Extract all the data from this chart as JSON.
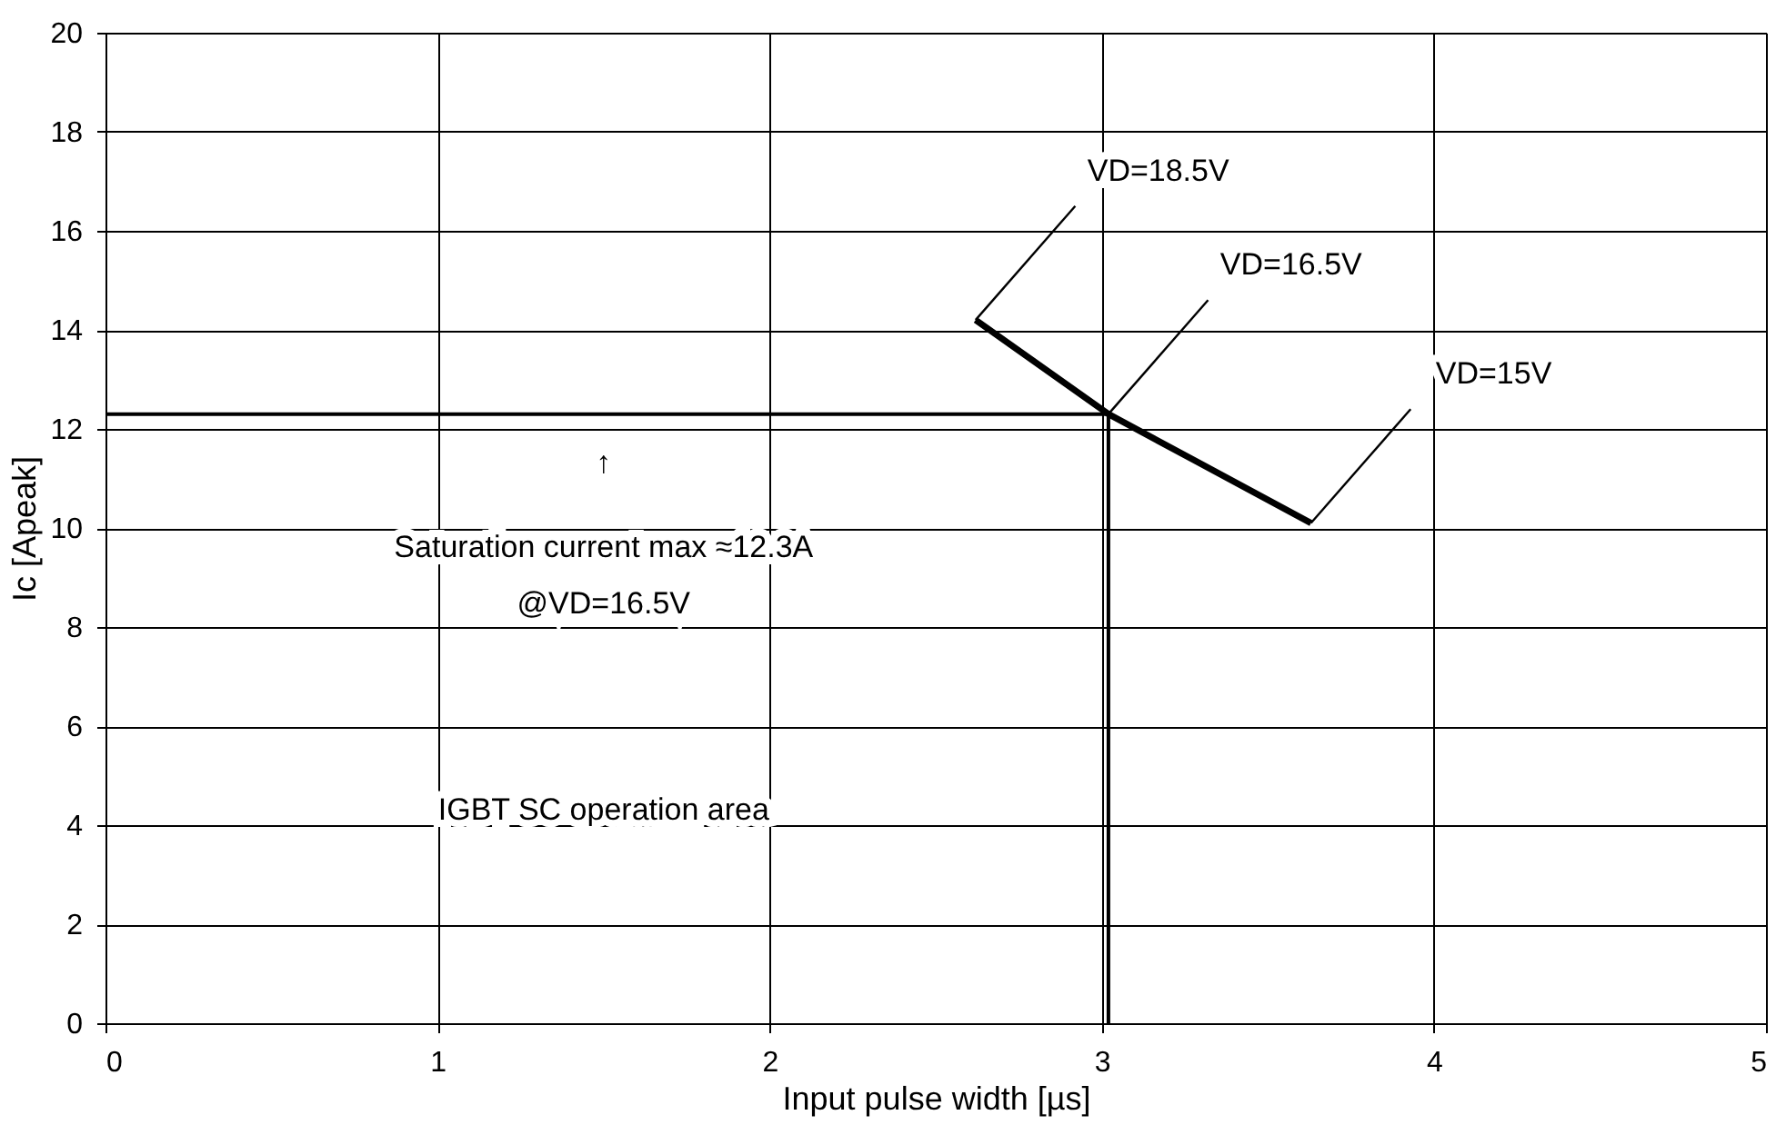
{
  "chart_data": {
    "type": "line",
    "xlabel": "Input pulse width [µs]",
    "ylabel": "Ic [Apeak]",
    "series": [
      {
        "color": "#000000",
        "x": [
          2.62,
          3.02,
          3.63
        ],
        "values": [
          14.2,
          12.3,
          10.1
        ]
      },
      {
        "color": "#000000",
        "x": [
          0,
          3.02,
          3.02
        ],
        "values": [
          12.3,
          12.3,
          0
        ]
      }
    ],
    "xlim": [
      0,
      5
    ],
    "xticks": [
      0,
      1,
      2,
      3,
      4,
      5
    ],
    "ylim": [
      0,
      20
    ],
    "yticks": [
      0,
      2,
      4,
      6,
      8,
      10,
      12,
      14,
      16,
      18,
      20
    ],
    "grid": true,
    "marker": "none",
    "line_style": "solid",
    "annotations": [
      {
        "text": "VD=18.5V",
        "x": 2.62,
        "y": 14.2
      },
      {
        "text": "VD=16.5V",
        "x": 3.02,
        "y": 12.3
      },
      {
        "text": "VD=15V",
        "x": 3.63,
        "y": 10.1
      },
      "↑",
      "Saturation current max  ≈12.3A",
      "@VD=16.5V",
      "IGBT SC operation area"
    ]
  }
}
